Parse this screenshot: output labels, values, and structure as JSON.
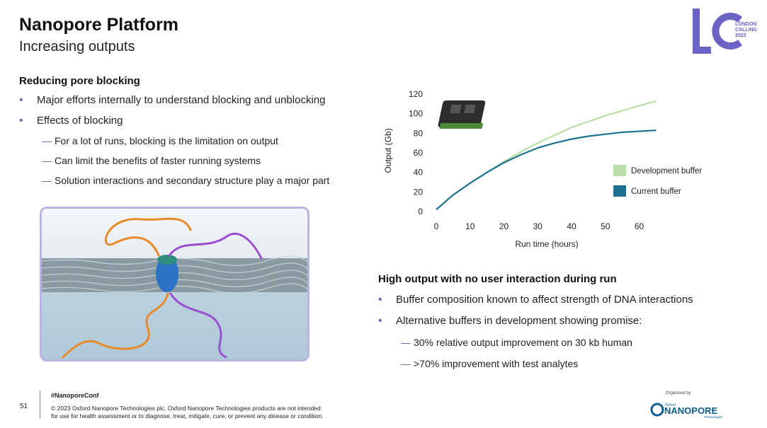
{
  "header": {
    "title": "Nanopore Platform",
    "subtitle": "Increasing outputs"
  },
  "logo": {
    "letters": "LC",
    "lines": [
      "LONDON",
      "CALLING",
      "2023"
    ],
    "color": "#6c63c7"
  },
  "left": {
    "heading": "Reducing pore blocking",
    "bullets": [
      "Major efforts internally to understand blocking and unblocking",
      "Effects of blocking"
    ],
    "subs": [
      "For a lot of runs, blocking is the limitation on output",
      "Can limit the benefits of faster running systems",
      "Solution interactions and secondary structure play a major part"
    ]
  },
  "right": {
    "heading": "High output with no user interaction during run",
    "bullets": [
      "Buffer composition known to affect strength of DNA interactions",
      "Alternative buffers in development showing promise:"
    ],
    "subs": [
      "30% relative output improvement on 30 kb human",
      ">70% improvement with test analytes"
    ]
  },
  "chart_data": {
    "type": "line",
    "xlabel": "Run time (hours)",
    "ylabel": "Output (Gb)",
    "xlim": [
      0,
      67
    ],
    "ylim": [
      0,
      120
    ],
    "xticks": [
      0,
      10,
      20,
      30,
      40,
      50,
      60
    ],
    "yticks": [
      0,
      20,
      40,
      60,
      80,
      100,
      120
    ],
    "legend_position": "right",
    "series": [
      {
        "name": "Development buffer",
        "color": "#b9dfa6",
        "x": [
          0,
          5,
          10,
          15,
          20,
          25,
          30,
          35,
          40,
          45,
          50,
          55,
          60,
          65
        ],
        "values": [
          2,
          17,
          29,
          40,
          51,
          61,
          70,
          78,
          86,
          92,
          98,
          103,
          108,
          113
        ]
      },
      {
        "name": "Current buffer",
        "color": "#1c7193",
        "x": [
          0,
          5,
          10,
          15,
          20,
          25,
          30,
          35,
          40,
          45,
          50,
          55,
          60,
          65
        ],
        "values": [
          2,
          17,
          29,
          40,
          50,
          58,
          65,
          70,
          74,
          77,
          79,
          81,
          82,
          83
        ]
      }
    ]
  },
  "footer": {
    "page_number": "51",
    "hashtag": "#NanoporeConf",
    "legal_1": "© 2023 Oxford Nanopore Technologies plc. Oxford Nanopore Technologies products are not intended",
    "legal_2": "for use for health assessment or to diagnose, treat, mitigate, cure, or prevent any disease or condition.",
    "organised_by": "Organised by",
    "org_small": "Oxford",
    "org_name": "NANOPORE",
    "org_tag": "Technologies"
  }
}
